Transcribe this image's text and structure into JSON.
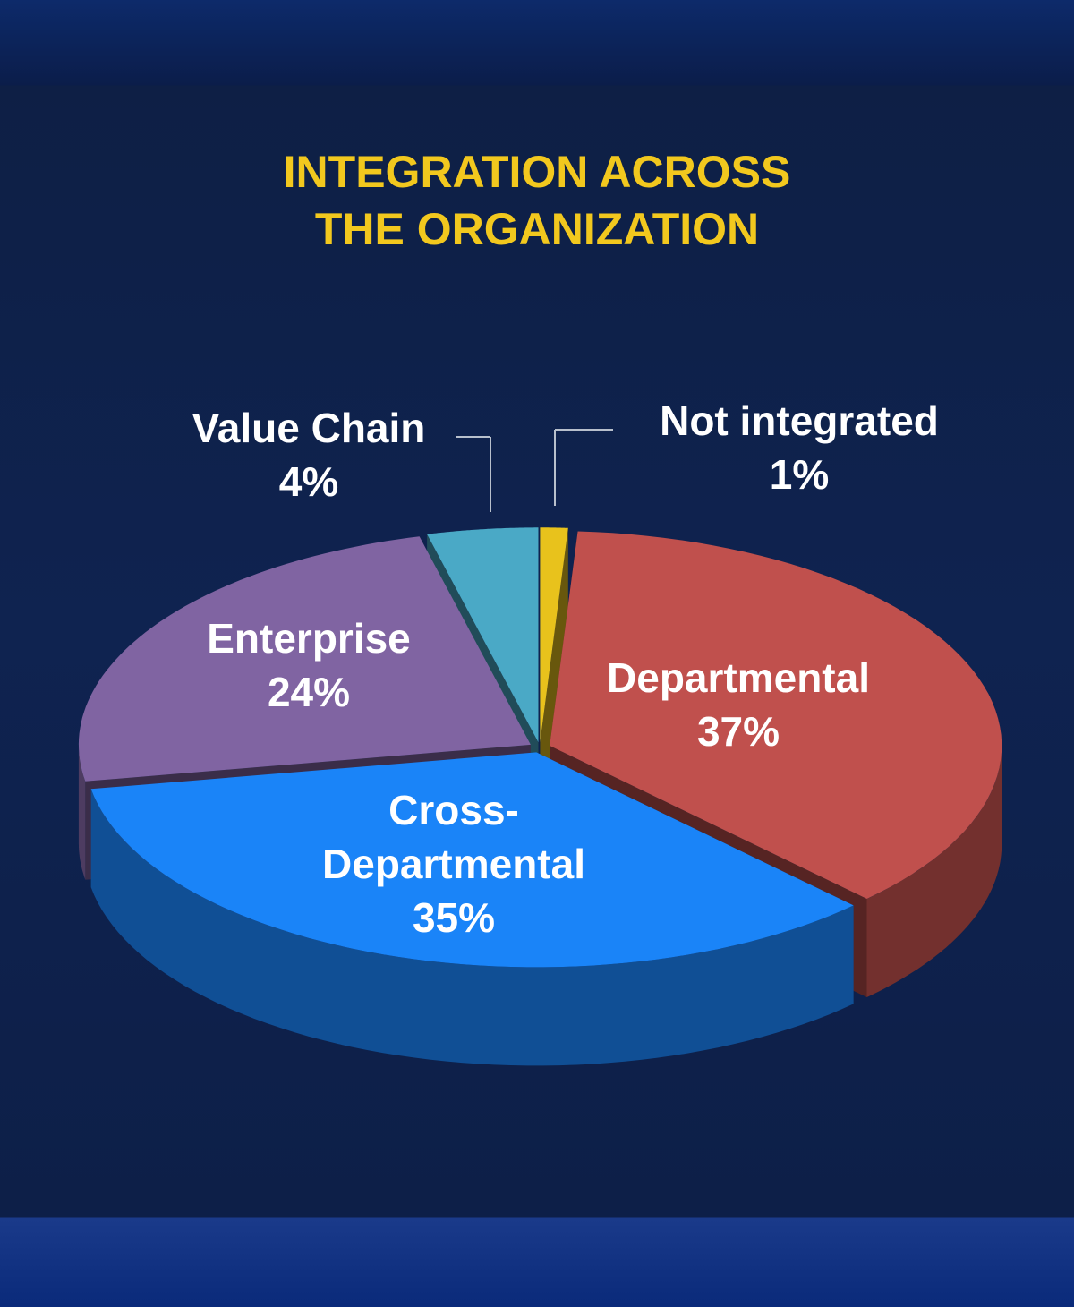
{
  "chart_data": {
    "type": "pie",
    "title": "INTEGRATION ACROSS THE ORGANIZATION",
    "categories": [
      "Not integrated",
      "Departmental",
      "Cross-Departmental",
      "Enterprise",
      "Value Chain"
    ],
    "values": [
      1,
      37,
      35,
      24,
      4
    ],
    "value_labels": [
      "1%",
      "37%",
      "35%",
      "24%",
      "4%"
    ],
    "colors": [
      "#e8c21c",
      "#c0504d",
      "#1a84f8",
      "#8064a2",
      "#4aa9c6"
    ]
  }
}
